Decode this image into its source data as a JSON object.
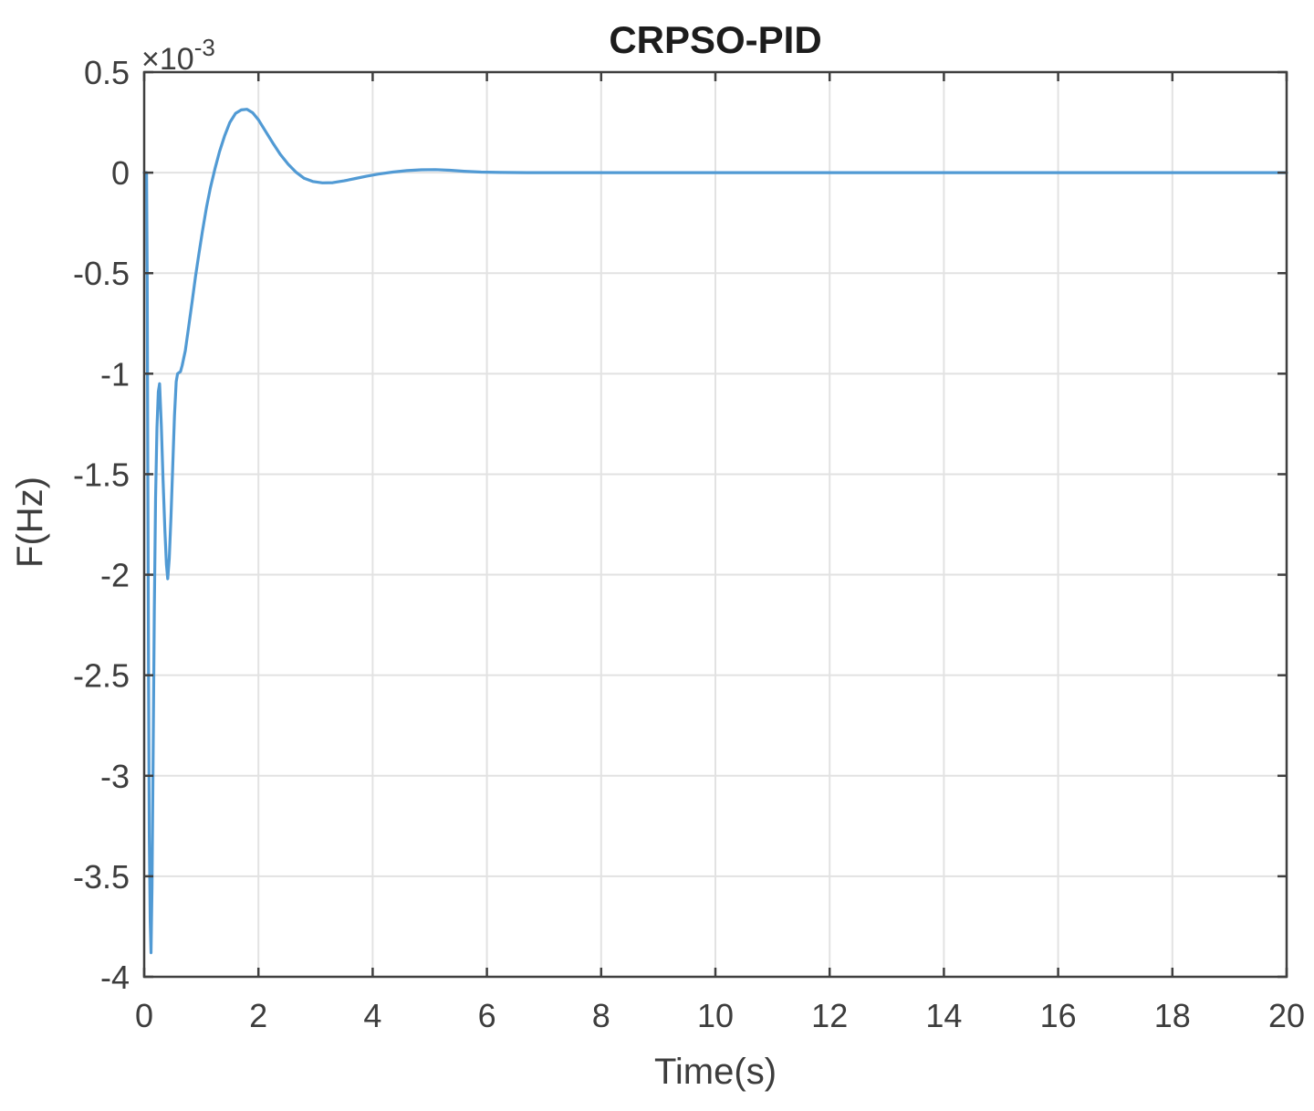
{
  "chart_data": {
    "type": "line",
    "title": "CRPSO-PID",
    "xlabel": "Time(s)",
    "ylabel": "F(Hz)",
    "scale_label": {
      "base": "×10",
      "exponent": "-3"
    },
    "xlim": [
      0,
      20
    ],
    "ylim": [
      -4,
      0.5
    ],
    "y_unit_scale": "1e-3",
    "grid": true,
    "legend": "none",
    "x_ticks": [
      0,
      2,
      4,
      6,
      8,
      10,
      12,
      14,
      16,
      18,
      20
    ],
    "x_tick_labels": [
      "0",
      "2",
      "4",
      "6",
      "8",
      "10",
      "12",
      "14",
      "16",
      "18",
      "20"
    ],
    "y_ticks": [
      0.5,
      0,
      -0.5,
      -1,
      -1.5,
      -2,
      -2.5,
      -3,
      -3.5,
      -4
    ],
    "y_tick_labels": [
      "0.5",
      "0",
      "-0.5",
      "-1",
      "-1.5",
      "-2",
      "-2.5",
      "-3",
      "-3.5",
      "-4"
    ],
    "colors": {
      "line": "#519ad4",
      "grid": "#e2e2e2",
      "frame": "#3f3f3f",
      "title": "#1c1c1c",
      "labels": "#3d3d3d"
    },
    "series": [
      {
        "name": "CRPSO-PID frequency deviation",
        "points": [
          [
            0,
            0
          ],
          [
            0.042,
            0
          ],
          [
            0.052,
            -0.5
          ],
          [
            0.063,
            -1.4
          ],
          [
            0.076,
            -2.5
          ],
          [
            0.09,
            -3.3
          ],
          [
            0.105,
            -3.72
          ],
          [
            0.12,
            -3.88
          ],
          [
            0.138,
            -3.55
          ],
          [
            0.158,
            -2.85
          ],
          [
            0.178,
            -2.18
          ],
          [
            0.2,
            -1.62
          ],
          [
            0.223,
            -1.27
          ],
          [
            0.248,
            -1.09
          ],
          [
            0.27,
            -1.05
          ],
          [
            0.3,
            -1.26
          ],
          [
            0.33,
            -1.53
          ],
          [
            0.362,
            -1.78
          ],
          [
            0.39,
            -1.95
          ],
          [
            0.412,
            -2.02
          ],
          [
            0.44,
            -1.92
          ],
          [
            0.47,
            -1.71
          ],
          [
            0.5,
            -1.46
          ],
          [
            0.53,
            -1.21
          ],
          [
            0.56,
            -1.04
          ],
          [
            0.585,
            -1.0
          ],
          [
            0.635,
            -0.99
          ],
          [
            0.665,
            -0.96
          ],
          [
            0.72,
            -0.885
          ],
          [
            0.78,
            -0.765
          ],
          [
            0.84,
            -0.64
          ],
          [
            0.9,
            -0.515
          ],
          [
            0.96,
            -0.4
          ],
          [
            1.02,
            -0.29
          ],
          [
            1.09,
            -0.175
          ],
          [
            1.16,
            -0.075
          ],
          [
            1.24,
            0.02
          ],
          [
            1.32,
            0.105
          ],
          [
            1.41,
            0.185
          ],
          [
            1.5,
            0.25
          ],
          [
            1.6,
            0.295
          ],
          [
            1.7,
            0.312
          ],
          [
            1.8,
            0.315
          ],
          [
            1.9,
            0.298
          ],
          [
            2.0,
            0.263
          ],
          [
            2.12,
            0.208
          ],
          [
            2.25,
            0.148
          ],
          [
            2.38,
            0.092
          ],
          [
            2.52,
            0.042
          ],
          [
            2.66,
            0.002
          ],
          [
            2.8,
            -0.028
          ],
          [
            2.95,
            -0.044
          ],
          [
            3.12,
            -0.051
          ],
          [
            3.3,
            -0.05
          ],
          [
            3.5,
            -0.041
          ],
          [
            3.7,
            -0.029
          ],
          [
            3.9,
            -0.017
          ],
          [
            4.1,
            -0.007
          ],
          [
            4.35,
            0.003
          ],
          [
            4.6,
            0.01
          ],
          [
            4.85,
            0.014
          ],
          [
            5.1,
            0.015
          ],
          [
            5.35,
            0.012
          ],
          [
            5.6,
            0.007
          ],
          [
            5.9,
            0.003
          ],
          [
            6.25,
            0.001
          ],
          [
            6.7,
            0
          ],
          [
            7.5,
            0
          ],
          [
            9,
            0
          ],
          [
            11,
            0
          ],
          [
            13,
            0
          ],
          [
            15,
            0
          ],
          [
            17,
            0
          ],
          [
            20,
            0
          ]
        ]
      }
    ]
  }
}
